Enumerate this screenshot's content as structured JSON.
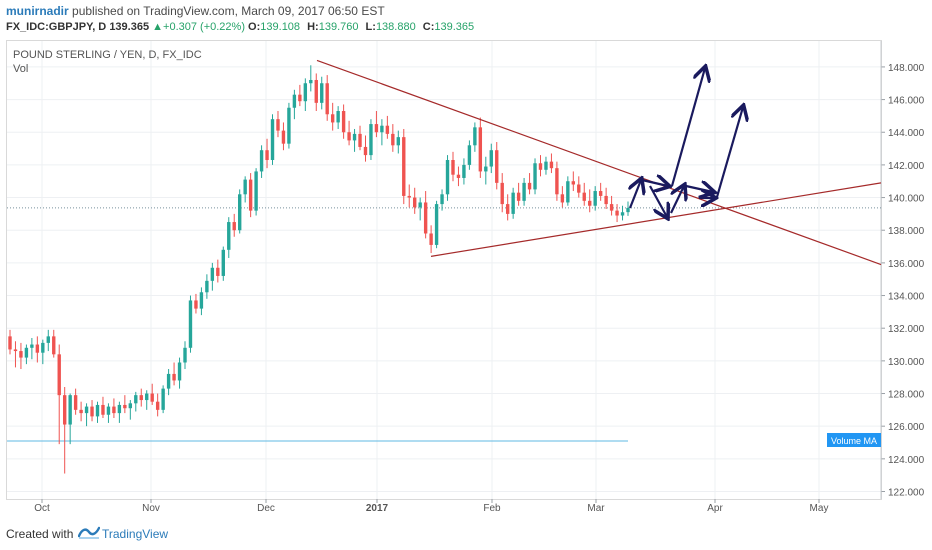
{
  "header": {
    "author": "munirnadir",
    "published_text": "published on TradingView.com, March 09, 2017 06:50 EST",
    "symbol": "FX_IDC:GBPJPY, D",
    "last": "139.365",
    "change_arrow": "▲",
    "change": "+0.307 (+0.22%)",
    "open_label": "O:",
    "open": "139.108",
    "high_label": "H:",
    "high": "139.760",
    "low_label": "L:",
    "low": "138.880",
    "close_label": "C:",
    "close": "139.365"
  },
  "footer": {
    "created_with": "Created with",
    "brand": "TradingView"
  },
  "colors": {
    "up": "#26a69a",
    "down": "#ef5350",
    "trendline": "#a52a2a",
    "arrows": "#1a1a5e",
    "price_line": "#78909c",
    "volume_ma": "#5fb8e3",
    "accent": "#2196f3"
  },
  "chart_data": {
    "type": "candlestick",
    "title": "POUND STERLING / YEN, D, FX_IDC",
    "indicator_label": "Vol",
    "volume_ma_label": "Volume MA",
    "y_ticks": [
      "122.000",
      "124.000",
      "126.000",
      "128.000",
      "130.000",
      "132.000",
      "134.000",
      "136.000",
      "138.000",
      "140.000",
      "142.000",
      "144.000",
      "146.000",
      "148.000"
    ],
    "ylim": [
      121.4,
      149.9
    ],
    "x_ticks": [
      "Oct",
      "Nov",
      "Dec",
      "2017",
      "Feb",
      "Mar",
      "Apr",
      "May"
    ],
    "current_price": 139.365,
    "ohlc_approx": [
      {
        "o": 131.5,
        "h": 131.9,
        "l": 130.4,
        "c": 130.7
      },
      {
        "o": 130.7,
        "h": 131.2,
        "l": 129.6,
        "c": 130.6
      },
      {
        "o": 130.6,
        "h": 131.1,
        "l": 129.5,
        "c": 130.2
      },
      {
        "o": 130.2,
        "h": 131.0,
        "l": 129.8,
        "c": 130.8
      },
      {
        "o": 130.8,
        "h": 131.4,
        "l": 130.1,
        "c": 131.0
      },
      {
        "o": 131.0,
        "h": 131.5,
        "l": 129.9,
        "c": 130.5
      },
      {
        "o": 130.5,
        "h": 131.3,
        "l": 129.8,
        "c": 131.1
      },
      {
        "o": 131.1,
        "h": 131.9,
        "l": 130.6,
        "c": 131.5
      },
      {
        "o": 131.5,
        "h": 131.9,
        "l": 130.2,
        "c": 130.4
      },
      {
        "o": 130.4,
        "h": 131.0,
        "l": 124.9,
        "c": 127.9
      },
      {
        "o": 127.9,
        "h": 128.4,
        "l": 123.1,
        "c": 126.1
      },
      {
        "o": 126.1,
        "h": 128.0,
        "l": 124.9,
        "c": 127.9
      },
      {
        "o": 127.9,
        "h": 128.3,
        "l": 126.7,
        "c": 127.0
      },
      {
        "o": 127.0,
        "h": 127.5,
        "l": 126.3,
        "c": 126.8
      },
      {
        "o": 126.8,
        "h": 127.4,
        "l": 126.0,
        "c": 127.2
      },
      {
        "o": 127.2,
        "h": 127.6,
        "l": 126.3,
        "c": 126.6
      },
      {
        "o": 126.6,
        "h": 127.5,
        "l": 126.2,
        "c": 127.3
      },
      {
        "o": 127.3,
        "h": 127.8,
        "l": 126.5,
        "c": 126.7
      },
      {
        "o": 126.7,
        "h": 127.4,
        "l": 126.2,
        "c": 127.2
      },
      {
        "o": 127.2,
        "h": 127.7,
        "l": 126.5,
        "c": 126.8
      },
      {
        "o": 126.8,
        "h": 127.5,
        "l": 126.2,
        "c": 127.3
      },
      {
        "o": 127.3,
        "h": 127.9,
        "l": 126.8,
        "c": 127.1
      },
      {
        "o": 127.1,
        "h": 127.6,
        "l": 126.4,
        "c": 127.4
      },
      {
        "o": 127.4,
        "h": 128.1,
        "l": 126.9,
        "c": 127.9
      },
      {
        "o": 127.9,
        "h": 128.3,
        "l": 127.2,
        "c": 127.6
      },
      {
        "o": 127.6,
        "h": 128.2,
        "l": 127.0,
        "c": 128.0
      },
      {
        "o": 128.0,
        "h": 128.6,
        "l": 127.3,
        "c": 127.5
      },
      {
        "o": 127.5,
        "h": 128.0,
        "l": 126.6,
        "c": 127.0
      },
      {
        "o": 127.0,
        "h": 128.5,
        "l": 126.8,
        "c": 128.3
      },
      {
        "o": 128.3,
        "h": 129.5,
        "l": 127.9,
        "c": 129.2
      },
      {
        "o": 129.2,
        "h": 129.9,
        "l": 128.5,
        "c": 128.8
      },
      {
        "o": 128.8,
        "h": 130.2,
        "l": 128.3,
        "c": 129.9
      },
      {
        "o": 129.9,
        "h": 131.2,
        "l": 129.5,
        "c": 130.8
      },
      {
        "o": 130.8,
        "h": 134.0,
        "l": 130.5,
        "c": 133.7
      },
      {
        "o": 133.7,
        "h": 134.1,
        "l": 132.9,
        "c": 133.2
      },
      {
        "o": 133.2,
        "h": 134.5,
        "l": 132.8,
        "c": 134.2
      },
      {
        "o": 134.2,
        "h": 135.3,
        "l": 133.8,
        "c": 134.9
      },
      {
        "o": 134.9,
        "h": 136.0,
        "l": 134.3,
        "c": 135.7
      },
      {
        "o": 135.7,
        "h": 136.2,
        "l": 134.8,
        "c": 135.2
      },
      {
        "o": 135.2,
        "h": 137.0,
        "l": 134.9,
        "c": 136.8
      },
      {
        "o": 136.8,
        "h": 138.8,
        "l": 136.3,
        "c": 138.5
      },
      {
        "o": 138.5,
        "h": 139.0,
        "l": 137.6,
        "c": 138.0
      },
      {
        "o": 138.0,
        "h": 140.5,
        "l": 137.8,
        "c": 140.2
      },
      {
        "o": 140.2,
        "h": 141.3,
        "l": 139.7,
        "c": 141.1
      },
      {
        "o": 141.1,
        "h": 141.5,
        "l": 138.8,
        "c": 139.2
      },
      {
        "o": 139.2,
        "h": 141.8,
        "l": 138.9,
        "c": 141.6
      },
      {
        "o": 141.6,
        "h": 143.2,
        "l": 141.2,
        "c": 142.9
      },
      {
        "o": 142.9,
        "h": 143.6,
        "l": 141.8,
        "c": 142.3
      },
      {
        "o": 142.3,
        "h": 145.1,
        "l": 142.0,
        "c": 144.8
      },
      {
        "o": 144.8,
        "h": 145.3,
        "l": 143.7,
        "c": 144.1
      },
      {
        "o": 144.1,
        "h": 144.6,
        "l": 142.9,
        "c": 143.3
      },
      {
        "o": 143.3,
        "h": 145.8,
        "l": 143.0,
        "c": 145.5
      },
      {
        "o": 145.5,
        "h": 146.6,
        "l": 144.8,
        "c": 146.3
      },
      {
        "o": 146.3,
        "h": 146.9,
        "l": 145.6,
        "c": 145.9
      },
      {
        "o": 145.9,
        "h": 147.3,
        "l": 145.3,
        "c": 147.0
      },
      {
        "o": 147.0,
        "h": 148.1,
        "l": 146.5,
        "c": 147.2
      },
      {
        "o": 147.2,
        "h": 147.6,
        "l": 145.3,
        "c": 145.8
      },
      {
        "o": 145.8,
        "h": 147.4,
        "l": 145.4,
        "c": 147.0
      },
      {
        "o": 147.0,
        "h": 147.5,
        "l": 144.7,
        "c": 145.1
      },
      {
        "o": 145.1,
        "h": 145.8,
        "l": 144.1,
        "c": 144.6
      },
      {
        "o": 144.6,
        "h": 145.6,
        "l": 144.2,
        "c": 145.3
      },
      {
        "o": 145.3,
        "h": 145.7,
        "l": 143.6,
        "c": 144.0
      },
      {
        "o": 144.0,
        "h": 144.7,
        "l": 143.2,
        "c": 143.5
      },
      {
        "o": 143.5,
        "h": 144.2,
        "l": 142.8,
        "c": 143.9
      },
      {
        "o": 143.9,
        "h": 144.4,
        "l": 142.9,
        "c": 143.1
      },
      {
        "o": 143.1,
        "h": 143.8,
        "l": 142.2,
        "c": 142.6
      },
      {
        "o": 142.6,
        "h": 144.8,
        "l": 142.3,
        "c": 144.5
      },
      {
        "o": 144.5,
        "h": 145.3,
        "l": 143.7,
        "c": 144.0
      },
      {
        "o": 144.0,
        "h": 144.8,
        "l": 143.2,
        "c": 144.4
      },
      {
        "o": 144.4,
        "h": 145.0,
        "l": 143.6,
        "c": 143.9
      },
      {
        "o": 143.9,
        "h": 144.5,
        "l": 142.8,
        "c": 143.2
      },
      {
        "o": 143.2,
        "h": 144.1,
        "l": 142.7,
        "c": 143.7
      },
      {
        "o": 143.7,
        "h": 144.2,
        "l": 139.6,
        "c": 140.1
      },
      {
        "o": 140.1,
        "h": 140.8,
        "l": 139.4,
        "c": 140.0
      },
      {
        "o": 140.0,
        "h": 140.6,
        "l": 139.0,
        "c": 139.4
      },
      {
        "o": 139.4,
        "h": 140.0,
        "l": 138.6,
        "c": 139.7
      },
      {
        "o": 139.7,
        "h": 140.4,
        "l": 137.5,
        "c": 137.8
      },
      {
        "o": 137.8,
        "h": 138.3,
        "l": 136.6,
        "c": 137.1
      },
      {
        "o": 137.1,
        "h": 139.8,
        "l": 136.9,
        "c": 139.6
      },
      {
        "o": 139.6,
        "h": 140.5,
        "l": 139.2,
        "c": 140.2
      },
      {
        "o": 140.2,
        "h": 142.6,
        "l": 139.8,
        "c": 142.3
      },
      {
        "o": 142.3,
        "h": 142.8,
        "l": 141.0,
        "c": 141.4
      },
      {
        "o": 141.4,
        "h": 141.9,
        "l": 140.7,
        "c": 141.2
      },
      {
        "o": 141.2,
        "h": 142.4,
        "l": 140.8,
        "c": 142.0
      },
      {
        "o": 142.0,
        "h": 143.5,
        "l": 141.7,
        "c": 143.2
      },
      {
        "o": 143.2,
        "h": 144.6,
        "l": 142.8,
        "c": 144.3
      },
      {
        "o": 144.3,
        "h": 144.9,
        "l": 141.2,
        "c": 141.6
      },
      {
        "o": 141.6,
        "h": 142.5,
        "l": 140.8,
        "c": 141.9
      },
      {
        "o": 141.9,
        "h": 143.3,
        "l": 141.5,
        "c": 142.9
      },
      {
        "o": 142.9,
        "h": 143.4,
        "l": 140.5,
        "c": 140.9
      },
      {
        "o": 140.9,
        "h": 141.5,
        "l": 139.1,
        "c": 139.6
      },
      {
        "o": 139.6,
        "h": 140.2,
        "l": 138.6,
        "c": 139.0
      },
      {
        "o": 139.0,
        "h": 140.6,
        "l": 138.7,
        "c": 140.3
      },
      {
        "o": 140.3,
        "h": 140.9,
        "l": 139.5,
        "c": 139.8
      },
      {
        "o": 139.8,
        "h": 141.2,
        "l": 139.5,
        "c": 140.9
      },
      {
        "o": 140.9,
        "h": 141.5,
        "l": 140.2,
        "c": 140.5
      },
      {
        "o": 140.5,
        "h": 142.4,
        "l": 140.2,
        "c": 142.1
      },
      {
        "o": 142.1,
        "h": 142.6,
        "l": 141.3,
        "c": 141.7
      },
      {
        "o": 141.7,
        "h": 142.5,
        "l": 141.4,
        "c": 142.2
      },
      {
        "o": 142.2,
        "h": 142.7,
        "l": 141.5,
        "c": 141.8
      },
      {
        "o": 141.8,
        "h": 142.2,
        "l": 139.8,
        "c": 140.2
      },
      {
        "o": 140.2,
        "h": 140.7,
        "l": 139.4,
        "c": 139.7
      },
      {
        "o": 139.7,
        "h": 141.3,
        "l": 139.5,
        "c": 141.0
      },
      {
        "o": 141.0,
        "h": 141.6,
        "l": 140.4,
        "c": 140.8
      },
      {
        "o": 140.8,
        "h": 141.3,
        "l": 140.0,
        "c": 140.3
      },
      {
        "o": 140.3,
        "h": 140.9,
        "l": 139.5,
        "c": 139.8
      },
      {
        "o": 139.8,
        "h": 140.5,
        "l": 139.1,
        "c": 139.5
      },
      {
        "o": 139.5,
        "h": 140.7,
        "l": 139.2,
        "c": 140.4
      },
      {
        "o": 140.4,
        "h": 140.9,
        "l": 139.8,
        "c": 140.1
      },
      {
        "o": 140.1,
        "h": 140.6,
        "l": 139.3,
        "c": 139.6
      },
      {
        "o": 139.6,
        "h": 140.1,
        "l": 138.9,
        "c": 139.2
      },
      {
        "o": 139.2,
        "h": 139.6,
        "l": 138.5,
        "c": 138.9
      },
      {
        "o": 138.9,
        "h": 139.5,
        "l": 138.6,
        "c": 139.1
      },
      {
        "o": 139.108,
        "h": 139.76,
        "l": 138.88,
        "c": 139.365
      }
    ]
  }
}
